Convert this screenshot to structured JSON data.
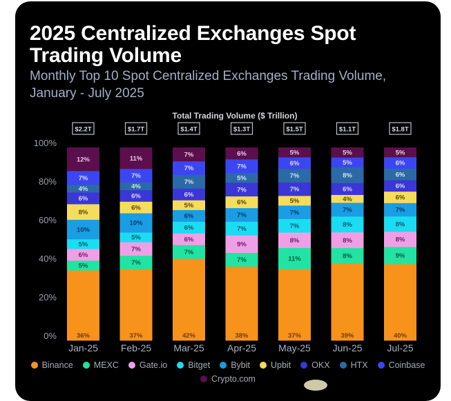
{
  "title": "2025 Centralized Exchanges Spot Trading Volume",
  "subtitle": "Monthly Top 10 Spot Centralized Exchanges Trading Volume, January - July 2025",
  "chart_data": {
    "type": "bar",
    "stacked": true,
    "normalized_percent": true,
    "title": "2025 Centralized Exchanges Spot Trading Volume",
    "subtitle": "Monthly Top 10 Spot Centralized Exchanges Trading Volume, January - July 2025",
    "totals_label": "Total Trading Volume ($ Trillion)",
    "categories": [
      "Jan-25",
      "Feb-25",
      "Mar-25",
      "Apr-25",
      "May-25",
      "Jun-25",
      "Jul-25"
    ],
    "totals": [
      "$2.2T",
      "$1.7T",
      "$1.4T",
      "$1.3T",
      "$1.5T",
      "$1.1T",
      "$1.8T"
    ],
    "series": [
      {
        "name": "Binance",
        "color": "#f7931a",
        "label_color": "#7a3a00",
        "values": [
          36,
          37,
          42,
          38,
          37,
          39,
          40
        ]
      },
      {
        "name": "MEXC",
        "color": "#22e3a2",
        "label_color": "#0b5a44",
        "values": [
          5,
          7,
          7,
          7,
          11,
          8,
          9
        ]
      },
      {
        "name": "Gate.io",
        "color": "#ef9fe6",
        "label_color": "#6a1f63",
        "values": [
          6,
          7,
          6,
          9,
          8,
          8,
          8
        ]
      },
      {
        "name": "Bitget",
        "color": "#1adcf2",
        "label_color": "#0b5a6e",
        "values": [
          5,
          5,
          6,
          7,
          7,
          8,
          8
        ]
      },
      {
        "name": "Bybit",
        "color": "#1a9de3",
        "label_color": "#0a3a68",
        "values": [
          10,
          10,
          6,
          7,
          7,
          7,
          7
        ]
      },
      {
        "name": "Upbit",
        "color": "#f6dc5c",
        "label_color": "#5a4800",
        "values": [
          8,
          6,
          5,
          6,
          5,
          4,
          6
        ]
      },
      {
        "name": "OKX",
        "color": "#3b36d6",
        "label_color": "#d8d8f4",
        "values": [
          6,
          6,
          6,
          7,
          7,
          6,
          6
        ]
      },
      {
        "name": "HTX",
        "color": "#2b6aa6",
        "label_color": "#d4e0f0",
        "values": [
          4,
          4,
          7,
          5,
          7,
          8,
          6
        ]
      },
      {
        "name": "Coinbase",
        "color": "#3c46f0",
        "label_color": "#dcdcf8",
        "values": [
          7,
          7,
          7,
          7,
          6,
          5,
          6
        ]
      },
      {
        "name": "Crypto.com",
        "color": "#5b0f4c",
        "label_color": "#ecc8e4",
        "values": [
          12,
          11,
          7,
          6,
          5,
          5,
          5
        ]
      }
    ],
    "ylim": [
      0,
      100
    ],
    "yticks": [
      "0%",
      "20%",
      "40%",
      "60%",
      "80%",
      "100%"
    ],
    "ytick_values": [
      0,
      20,
      40,
      60,
      80,
      100
    ],
    "xlabel": "",
    "ylabel": "",
    "grid": false,
    "legend_position": "bottom"
  },
  "legend": {
    "row1": [
      {
        "name": "Binance",
        "color": "#f7931a"
      },
      {
        "name": "MEXC",
        "color": "#22e3a2"
      },
      {
        "name": "Gate.io",
        "color": "#ef9fe6"
      },
      {
        "name": "Bitget",
        "color": "#1adcf2"
      },
      {
        "name": "Bybit",
        "color": "#1a9de3"
      },
      {
        "name": "Upbit",
        "color": "#f6dc5c"
      },
      {
        "name": "OKX",
        "color": "#3b36d6"
      },
      {
        "name": "HTX",
        "color": "#2b6aa6"
      },
      {
        "name": "Coinbase",
        "color": "#3c46f0"
      }
    ],
    "row2": [
      {
        "name": "Crypto.com",
        "color": "#5b0f4c"
      }
    ]
  }
}
